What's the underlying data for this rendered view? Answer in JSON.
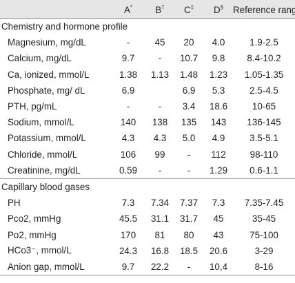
{
  "header": {
    "col_a": "A*",
    "col_b": "B†",
    "col_c": "C‡",
    "col_d": "D§",
    "col_ref": "Reference range"
  },
  "sections": [
    {
      "title": "Chemistry and hormone profile",
      "rows": [
        {
          "name": "Magnesium, mg/dL",
          "a": "-",
          "b": "45",
          "c": "20",
          "d": "4.0",
          "ref": "1.9-2.5"
        },
        {
          "name": "Calcium, mg/dL",
          "a": "9.7",
          "b": "-",
          "c": "10.7",
          "d": "9.8",
          "ref": "8.4-10.2"
        },
        {
          "name": "Ca, ionized, mmol/L",
          "a": "1.38",
          "b": "1.13",
          "c": "1.48",
          "d": "1.23",
          "ref": "1.05-1.35"
        },
        {
          "name": "Phosphate, mg/ dL",
          "a": "6.9",
          "b": "",
          "c": "6.9",
          "d": "5.3",
          "ref": "2.5-4.5"
        },
        {
          "name": "PTH, pg/mL",
          "a": "-",
          "b": "-",
          "c": "3.4",
          "d": "18.6",
          "ref": "10-65"
        },
        {
          "name": "Sodium, mmol/L",
          "a": "140",
          "b": "138",
          "c": "135",
          "d": "143",
          "ref": "136-145"
        },
        {
          "name": "Potassium, mmol/L",
          "a": "4.3",
          "b": "4.3",
          "c": "5.0",
          "d": "4.9",
          "ref": "3.5-5.1"
        },
        {
          "name": "Chloride, mmol/L",
          "a": "106",
          "b": "99",
          "c": "-",
          "d": "112",
          "ref": "98-110"
        },
        {
          "name": "Creatinine, mg/dL",
          "a": "0.59",
          "b": "-",
          "c": "-",
          "d": "1.29",
          "ref": "0.6-1.1"
        }
      ]
    },
    {
      "title": "Capillary blood gases",
      "rows": [
        {
          "name": "PH",
          "a": "7.3",
          "b": "7.34",
          "c": "7.37",
          "d": "7.3",
          "ref": "7.35-7.45"
        },
        {
          "name": "Pco2, mmHg",
          "a": "45.5",
          "b": "31.1",
          "c": "31.7",
          "d": "45",
          "ref": "35-45"
        },
        {
          "name": "Po2, mmHg",
          "a": "170",
          "b": "81",
          "c": "80",
          "d": "43",
          "ref": "75-100"
        },
        {
          "name": "HCo3⁻, mmol/L",
          "a": "24.3",
          "b": "16.8",
          "c": "18.5",
          "d": "20.6",
          "ref": "3-29"
        },
        {
          "name": "Anion gap, mmol/L",
          "a": "9.7",
          "b": "22.2",
          "c": "-",
          "d": "10,4",
          "ref": "8-16"
        }
      ]
    }
  ]
}
